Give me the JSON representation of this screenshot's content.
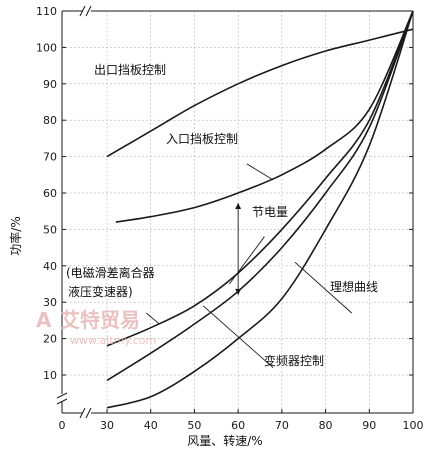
{
  "chart_data": {
    "type": "line",
    "xlabel": "风量、转速/%",
    "ylabel": "功率/%",
    "xlim": [
      0,
      100
    ],
    "ylim": [
      0,
      110
    ],
    "x_ticks": [
      0,
      30,
      40,
      50,
      60,
      70,
      80,
      90,
      100
    ],
    "y_ticks": [
      10,
      20,
      30,
      40,
      50,
      60,
      70,
      80,
      90,
      100,
      110
    ],
    "axis_breaks": true,
    "grid": false,
    "series": [
      {
        "name": "出口挡板控制",
        "x": [
          30,
          40,
          50,
          60,
          70,
          80,
          90,
          100
        ],
        "y": [
          70,
          77,
          84,
          90,
          95,
          99,
          102,
          105
        ]
      },
      {
        "name": "入口挡板控制",
        "x": [
          32,
          40,
          50,
          60,
          70,
          80,
          90,
          100
        ],
        "y": [
          52,
          53.5,
          56,
          60,
          65,
          72,
          83,
          110
        ]
      },
      {
        "name": "电磁滑差离合器、液压变速器",
        "x": [
          30,
          40,
          50,
          60,
          70,
          80,
          90,
          100
        ],
        "y": [
          18,
          23,
          29,
          38,
          50,
          64,
          80,
          110
        ]
      },
      {
        "name": "理想曲线",
        "x": [
          30,
          40,
          50,
          60,
          70,
          80,
          90,
          100
        ],
        "y": [
          8.5,
          16,
          24,
          33,
          45,
          60,
          78,
          110
        ]
      },
      {
        "name": "变频器控制",
        "x": [
          30,
          40,
          50,
          60,
          70,
          80,
          90,
          100
        ],
        "y": [
          1,
          4,
          11,
          20,
          31,
          50,
          73,
          110
        ]
      }
    ],
    "annotations": [
      {
        "text": "节电量",
        "x": 60
      }
    ]
  },
  "labels": {
    "outlet": "出口挡板控制",
    "inlet": "入口挡板控制",
    "saving": "节电量",
    "clutch_line1": "(电磁滑差离合器",
    "clutch_line2": "液压变速器)",
    "ideal": "理想曲线",
    "vfd": "变频器控制"
  },
  "watermark": {
    "logo_letter": "A",
    "name": "艾特贸易",
    "url": "www.aitmy.com"
  }
}
